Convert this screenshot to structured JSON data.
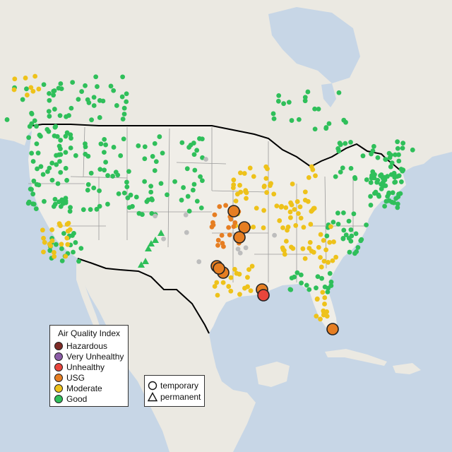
{
  "legend": {
    "title": "Air Quality Index",
    "categories": [
      {
        "label": "Hazardous",
        "color": "#7e2b26",
        "icon": "circle"
      },
      {
        "label": "Very Unhealthy",
        "color": "#8b5ca6",
        "icon": "circle"
      },
      {
        "label": "Unhealthy",
        "color": "#e8453c",
        "icon": "circle"
      },
      {
        "label": "USG",
        "color": "#e67e22",
        "icon": "circle"
      },
      {
        "label": "Moderate",
        "color": "#eec21a",
        "icon": "circle"
      },
      {
        "label": "Good",
        "color": "#2fbf5a",
        "icon": "circle"
      }
    ]
  },
  "monitor_types": [
    {
      "label": "temporary",
      "icon": "circle-icon"
    },
    {
      "label": "permanent",
      "icon": "triangle-icon"
    }
  ],
  "colors": {
    "water": "#c7d6e6",
    "land": "#ebe9e2",
    "us_land": "#f0eee8",
    "border": "#000000",
    "state_lines": "#9a9a9a",
    "no_data": "#bdbdbd"
  }
}
